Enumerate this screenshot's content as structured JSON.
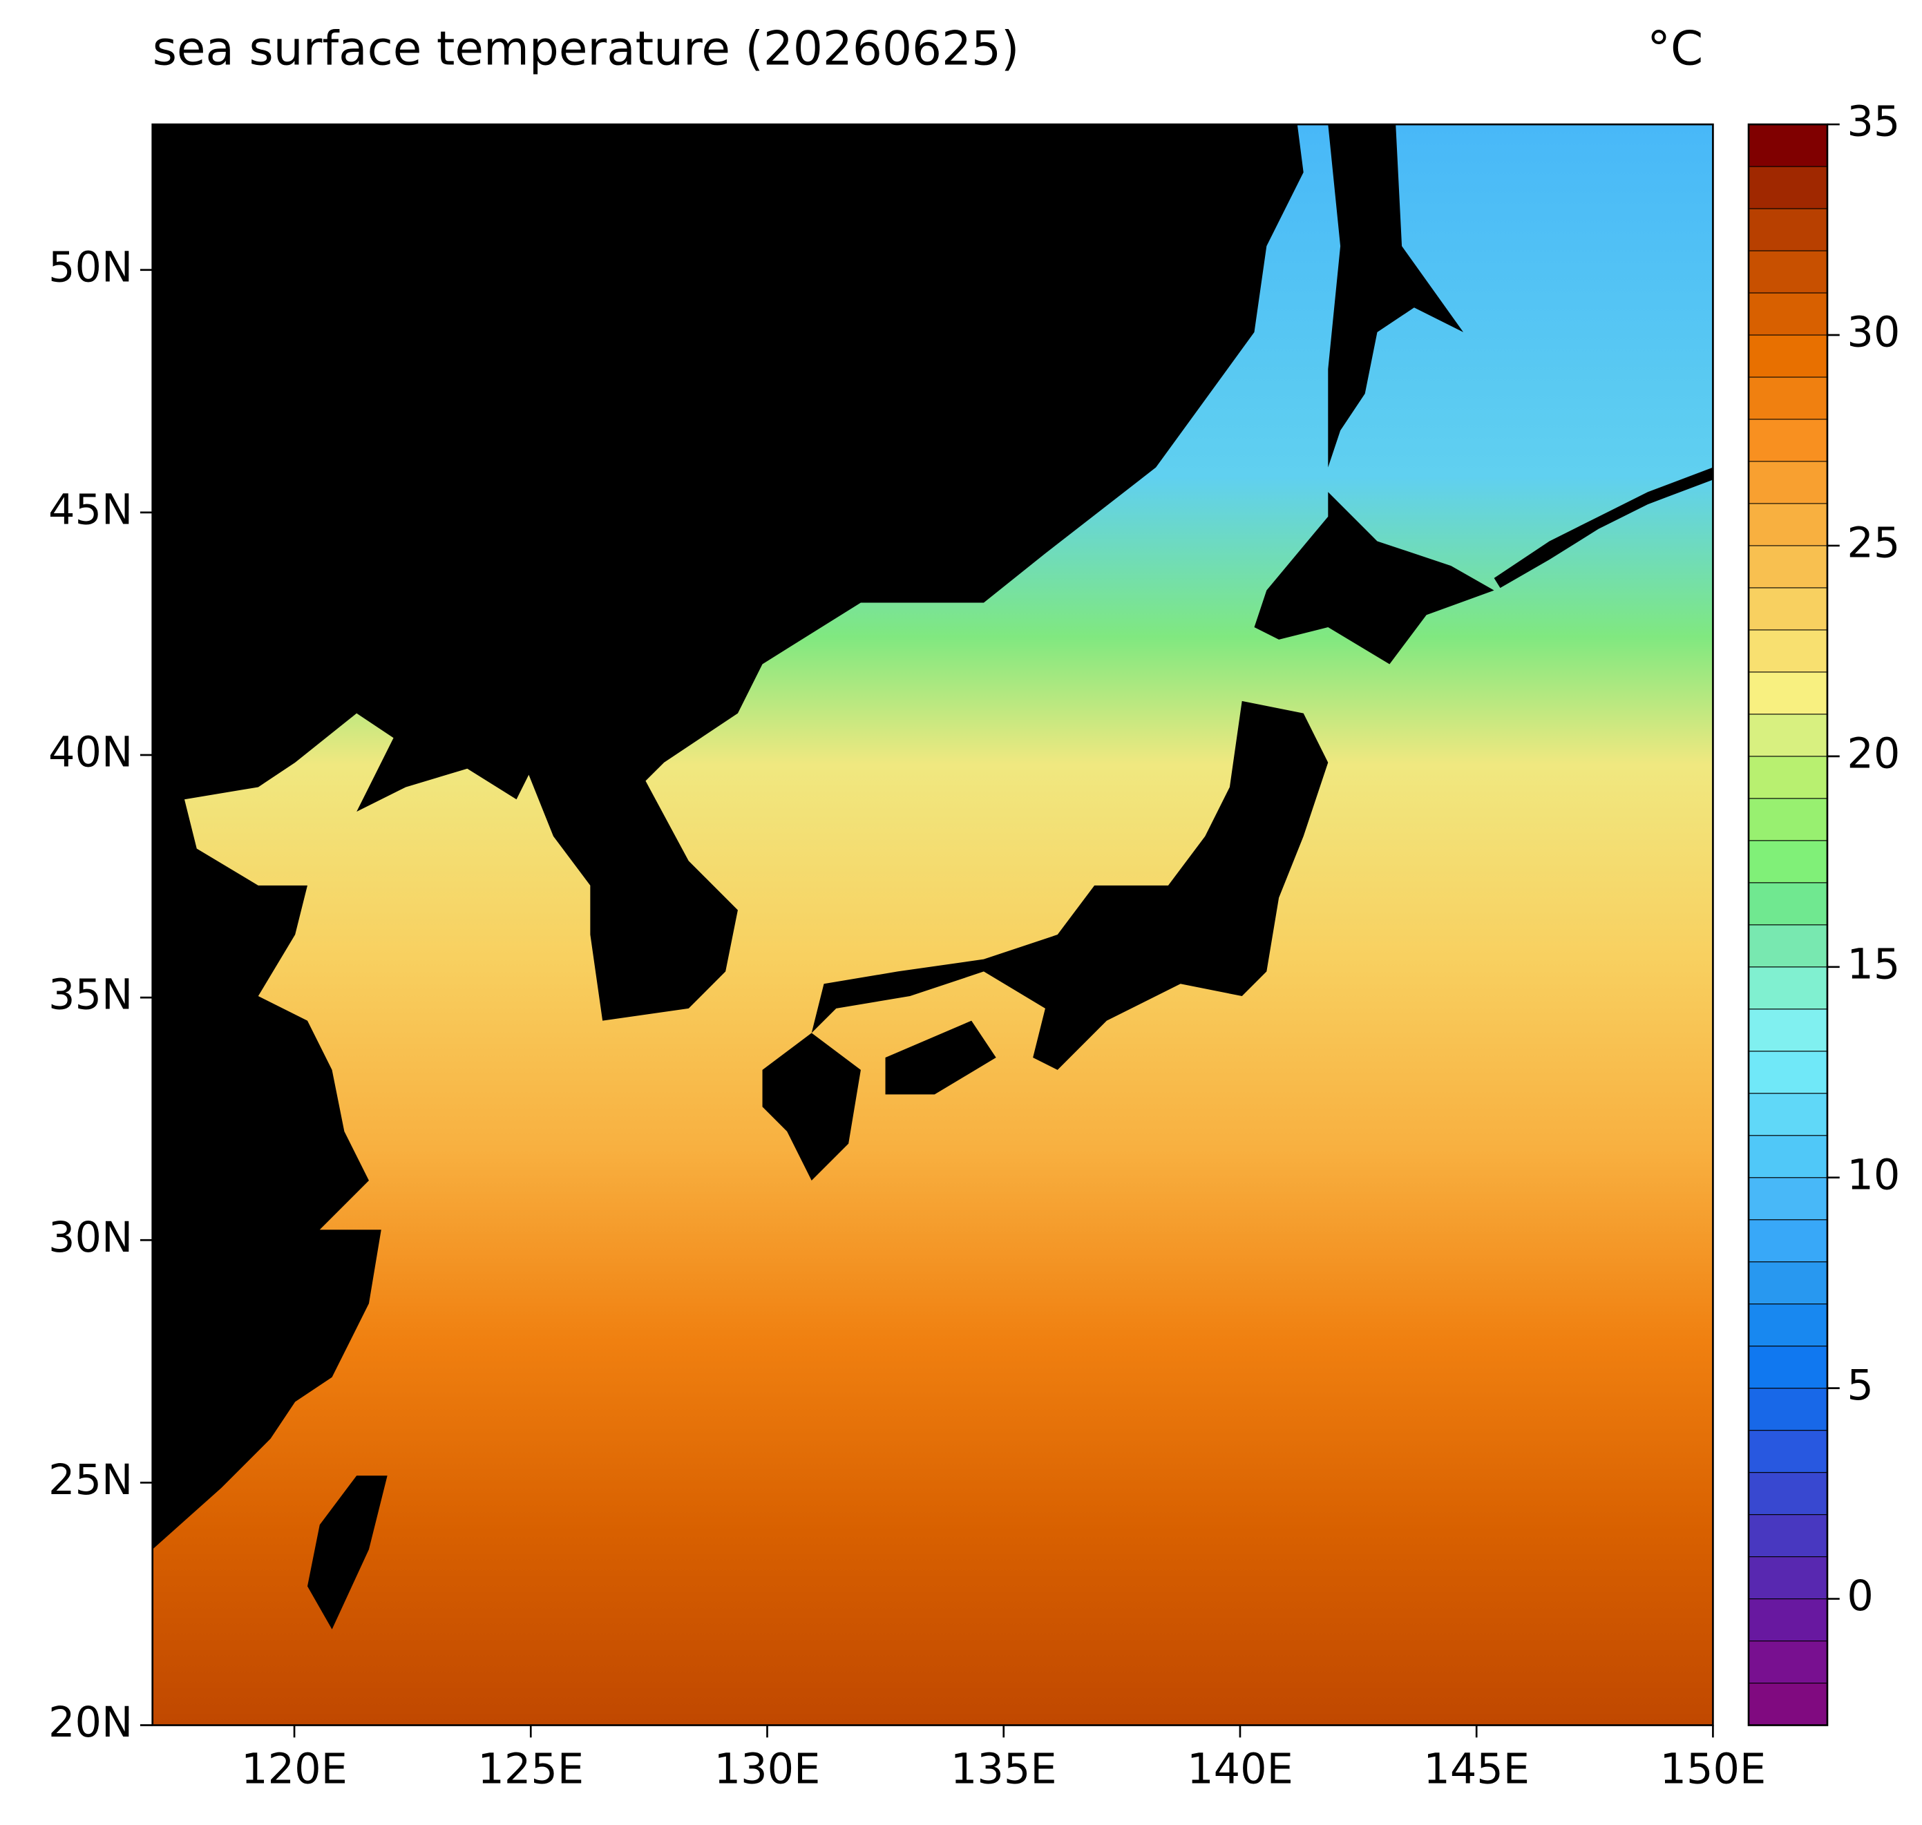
{
  "chart_data": {
    "type": "map",
    "title": "sea surface temperature (20260625)",
    "colorbar_label": "°C",
    "xlim": [
      117,
      150
    ],
    "ylim": [
      20,
      53
    ],
    "xticks": [
      {
        "value": 120,
        "label": "120E"
      },
      {
        "value": 125,
        "label": "125E"
      },
      {
        "value": 130,
        "label": "130E"
      },
      {
        "value": 135,
        "label": "135E"
      },
      {
        "value": 140,
        "label": "140E"
      },
      {
        "value": 145,
        "label": "145E"
      },
      {
        "value": 150,
        "label": "150E"
      }
    ],
    "yticks": [
      {
        "value": 20,
        "label": "20N"
      },
      {
        "value": 25,
        "label": "25N"
      },
      {
        "value": 30,
        "label": "30N"
      },
      {
        "value": 35,
        "label": "35N"
      },
      {
        "value": 40,
        "label": "40N"
      },
      {
        "value": 45,
        "label": "45N"
      },
      {
        "value": 50,
        "label": "50N"
      }
    ],
    "colorbar": {
      "lim": [
        -3,
        35
      ],
      "ticks": [
        0,
        5,
        10,
        15,
        20,
        25,
        30,
        35
      ],
      "colors": [
        "#800a80",
        "#781090",
        "#6818a0",
        "#5828b0",
        "#4838c0",
        "#3848d0",
        "#2858e0",
        "#1868e8",
        "#1078f0",
        "#1888f0",
        "#2898f0",
        "#38a8f8",
        "#48b8f8",
        "#50c8f8",
        "#60d8f8",
        "#70e8f8",
        "#80f0f0",
        "#80f0d0",
        "#78e8b0",
        "#70e890",
        "#80f078",
        "#98f070",
        "#b8f070",
        "#d8f080",
        "#f8f080",
        "#f8e070",
        "#f8d060",
        "#f8c050",
        "#f8b040",
        "#f8a030",
        "#f89020",
        "#f08010",
        "#e87000",
        "#d86000",
        "#c85000",
        "#b84000",
        "#a02800",
        "#800000"
      ]
    }
  }
}
